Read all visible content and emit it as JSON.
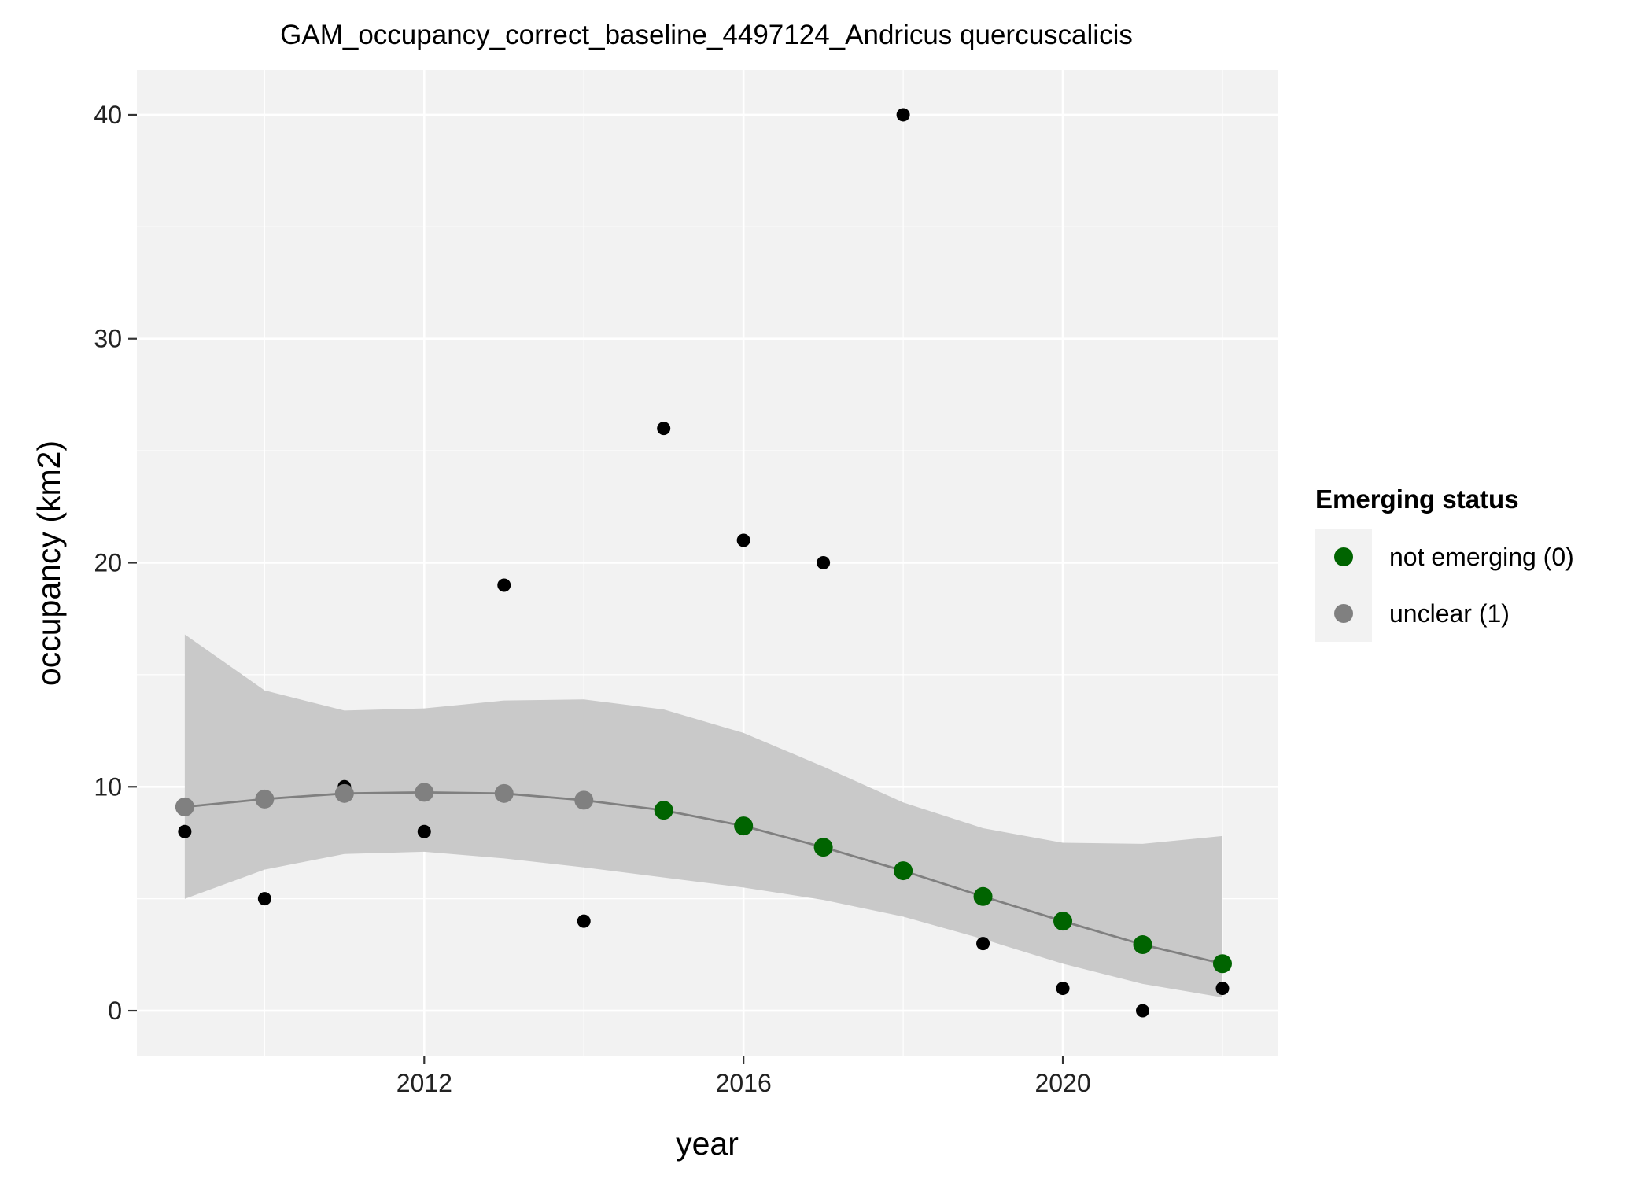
{
  "chart_data": {
    "type": "scatter",
    "title": "GAM_occupancy_correct_baseline_4497124_Andricus quercuscalicis",
    "xlabel": "year",
    "ylabel": "occupancy (km2)",
    "xlim": [
      2008.4,
      2022.7
    ],
    "ylim": [
      -2,
      42
    ],
    "x_ticks": [
      2012,
      2016,
      2020
    ],
    "y_ticks": [
      0,
      10,
      20,
      30,
      40
    ],
    "x_tick_labels": [
      "2012",
      "2016",
      "2020"
    ],
    "y_tick_labels": [
      "0",
      "10",
      "20",
      "30",
      "40"
    ],
    "grid": true,
    "background_color": "#f2f2f2",
    "observed_points": {
      "color": "#000000",
      "x": [
        2009,
        2010,
        2011,
        2012,
        2013,
        2014,
        2015,
        2016,
        2017,
        2018,
        2019,
        2020,
        2021,
        2022
      ],
      "y": [
        8,
        5,
        10,
        8,
        19,
        4,
        26,
        21,
        20,
        40,
        3,
        1,
        0,
        1
      ]
    },
    "gam_fit": {
      "line_color": "#808080",
      "band_color": "#c6c6c6",
      "x": [
        2009,
        2010,
        2011,
        2012,
        2013,
        2014,
        2015,
        2016,
        2017,
        2018,
        2019,
        2020,
        2021,
        2022
      ],
      "y": [
        9.1,
        9.45,
        9.7,
        9.75,
        9.7,
        9.4,
        8.95,
        8.25,
        7.3,
        6.25,
        5.1,
        4.0,
        2.95,
        2.1
      ],
      "lower": [
        5.0,
        6.3,
        7.0,
        7.1,
        6.8,
        6.4,
        5.95,
        5.5,
        4.95,
        4.2,
        3.2,
        2.1,
        1.2,
        0.6
      ],
      "upper": [
        16.8,
        14.3,
        13.4,
        13.5,
        13.85,
        13.9,
        13.45,
        12.4,
        10.9,
        9.3,
        8.15,
        7.5,
        7.45,
        7.8
      ],
      "status": [
        1,
        1,
        1,
        1,
        1,
        1,
        0,
        0,
        0,
        0,
        0,
        0,
        0,
        0
      ]
    },
    "legend": {
      "title": "Emerging status",
      "placement": "right",
      "entries": [
        {
          "label": "not emerging (0)",
          "color": "#006400"
        },
        {
          "label": "unclear (1)",
          "color": "#808080"
        }
      ]
    }
  }
}
